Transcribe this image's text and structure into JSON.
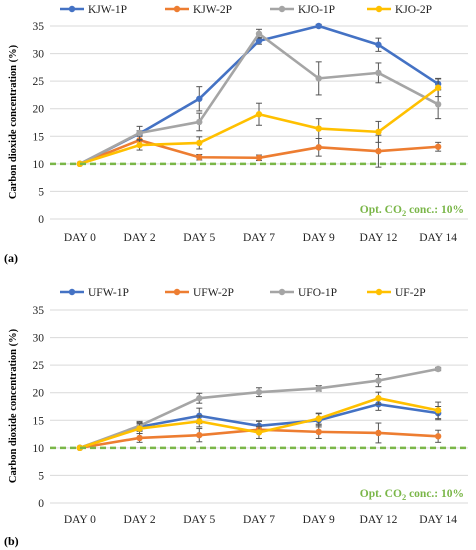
{
  "colors": {
    "blue": "#4472c4",
    "orange": "#ed7d31",
    "gray": "#a5a5a5",
    "yellow": "#ffc000",
    "reference": "#7ab648",
    "grid": "#d9d9d9"
  },
  "chart_data": [
    {
      "type": "line",
      "panel_label": "(a)",
      "ylabel": "Carbon dioxide concentration (%)",
      "categories": [
        "DAY 0",
        "DAY 2",
        "DAY 5",
        "DAY 7",
        "DAY 9",
        "DAY 12",
        "DAY 14"
      ],
      "ylim": [
        0,
        35
      ],
      "yticks": [
        0,
        5,
        10,
        15,
        20,
        25,
        30,
        35
      ],
      "grid": true,
      "legend_position": "top",
      "reference_line": {
        "value": 10,
        "style": "dashed",
        "label_prefix": "Opt. CO",
        "label_sub": "2",
        "label_suffix": " conc.: 10%"
      },
      "series": [
        {
          "name": "KJW-1P",
          "color": "#4472c4",
          "values": [
            10,
            15.5,
            21.8,
            32.3,
            35,
            31.6,
            24.5
          ],
          "errors": [
            0,
            0.5,
            2.2,
            0.6,
            0.3,
            1.2,
            1.0
          ]
        },
        {
          "name": "KJW-2P",
          "color": "#ed7d31",
          "values": [
            10,
            14.3,
            11.2,
            11.1,
            13,
            12.3,
            13.1
          ],
          "errors": [
            0,
            0.9,
            0.5,
            0.5,
            1.6,
            2.9,
            0.8
          ]
        },
        {
          "name": "KJO-1P",
          "color": "#a5a5a5",
          "values": [
            10,
            15.6,
            17.6,
            33.6,
            25.5,
            26.5,
            20.8
          ],
          "errors": [
            0,
            1.2,
            1.6,
            0.8,
            3.0,
            1.8,
            2.6
          ]
        },
        {
          "name": "KJO-2P",
          "color": "#ffc000",
          "values": [
            10,
            13.4,
            13.8,
            19,
            16.4,
            15.8,
            23.8
          ],
          "errors": [
            0,
            0.9,
            1.1,
            2.0,
            1.8,
            1.9,
            1.6
          ]
        }
      ]
    },
    {
      "type": "line",
      "panel_label": "(b)",
      "ylabel": "Carbon dioxide concentration (%)",
      "categories": [
        "DAY 0",
        "DAY 2",
        "DAY 5",
        "DAY 7",
        "DAY 9",
        "DAY 12",
        "DAY 14"
      ],
      "ylim": [
        0,
        35
      ],
      "yticks": [
        0,
        5,
        10,
        15,
        20,
        25,
        30,
        35
      ],
      "grid": true,
      "legend_position": "top",
      "reference_line": {
        "value": 10,
        "style": "dashed",
        "label_prefix": "Opt. CO",
        "label_sub": "2",
        "label_suffix": " conc.: 10%"
      },
      "series": [
        {
          "name": "UFW-1P",
          "color": "#4472c4",
          "values": [
            10,
            13.8,
            15.8,
            14.0,
            15.0,
            17.9,
            16.3
          ],
          "errors": [
            0,
            0.8,
            1.4,
            0.8,
            1.2,
            1.1,
            1.2
          ]
        },
        {
          "name": "UFW-2P",
          "color": "#ed7d31",
          "values": [
            10,
            11.8,
            12.3,
            13.3,
            12.9,
            12.7,
            12.1
          ],
          "errors": [
            0,
            0.8,
            1.2,
            1.6,
            1.2,
            1.8,
            1.1
          ]
        },
        {
          "name": "UFO-1P",
          "color": "#a5a5a5",
          "values": [
            10,
            14.0,
            19.0,
            20.1,
            20.8,
            22.2,
            24.3
          ],
          "errors": [
            0,
            0.8,
            0.9,
            0.8,
            0.5,
            1.1,
            0.3
          ]
        },
        {
          "name": "UF-2P",
          "color": "#ffc000",
          "values": [
            10,
            13.5,
            14.8,
            12.8,
            15.3,
            19.0,
            16.8
          ],
          "errors": [
            0,
            0.9,
            1.0,
            1.1,
            1.0,
            1.1,
            1.5
          ]
        }
      ]
    }
  ]
}
